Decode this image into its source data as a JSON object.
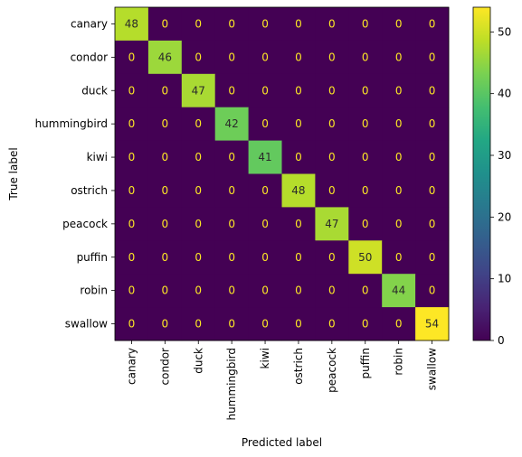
{
  "chart_data": {
    "type": "heatmap",
    "title": "",
    "xlabel": "Predicted label",
    "ylabel": "True label",
    "x_categories": [
      "canary",
      "condor",
      "duck",
      "hummingbird",
      "kiwi",
      "ostrich",
      "peacock",
      "puffin",
      "robin",
      "swallow"
    ],
    "y_categories": [
      "canary",
      "condor",
      "duck",
      "hummingbird",
      "kiwi",
      "ostrich",
      "peacock",
      "puffin",
      "robin",
      "swallow"
    ],
    "values": [
      [
        48,
        0,
        0,
        0,
        0,
        0,
        0,
        0,
        0,
        0
      ],
      [
        0,
        46,
        0,
        0,
        0,
        0,
        0,
        0,
        0,
        0
      ],
      [
        0,
        0,
        47,
        0,
        0,
        0,
        0,
        0,
        0,
        0
      ],
      [
        0,
        0,
        0,
        42,
        0,
        0,
        0,
        0,
        0,
        0
      ],
      [
        0,
        0,
        0,
        0,
        41,
        0,
        0,
        0,
        0,
        0
      ],
      [
        0,
        0,
        0,
        0,
        0,
        48,
        0,
        0,
        0,
        0
      ],
      [
        0,
        0,
        0,
        0,
        0,
        0,
        47,
        0,
        0,
        0
      ],
      [
        0,
        0,
        0,
        0,
        0,
        0,
        0,
        50,
        0,
        0
      ],
      [
        0,
        0,
        0,
        0,
        0,
        0,
        0,
        0,
        44,
        0
      ],
      [
        0,
        0,
        0,
        0,
        0,
        0,
        0,
        0,
        0,
        54
      ]
    ],
    "colormap": "viridis",
    "colorbar": {
      "range": [
        0,
        54
      ],
      "ticks": [
        0,
        10,
        20,
        30,
        40,
        50
      ]
    },
    "grid": false,
    "legend": "colorbar-right"
  }
}
